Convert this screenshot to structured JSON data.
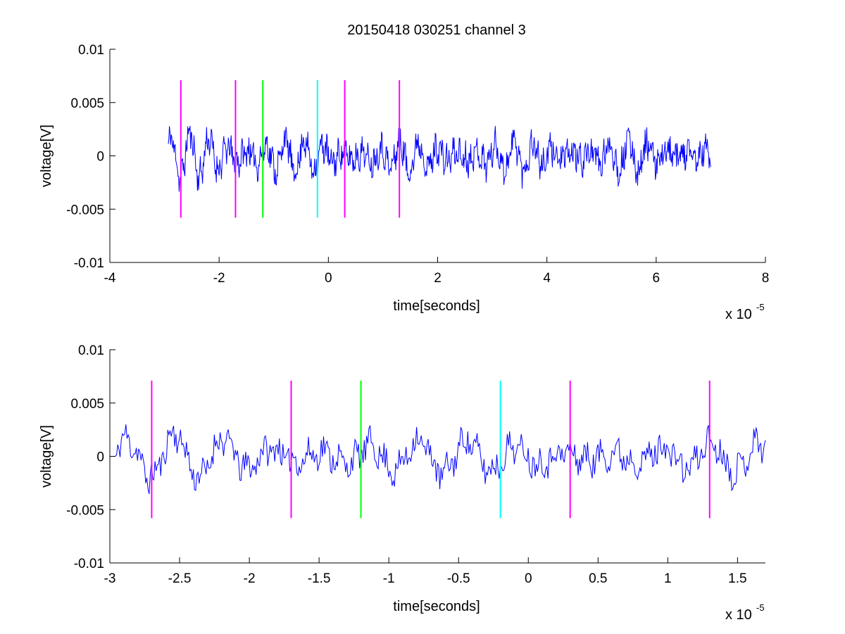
{
  "chart_data": {
    "title": "20150418 030251 channel 3",
    "panels": [
      {
        "id": "overview",
        "type": "line",
        "xlabel": "time[seconds]",
        "ylabel": "voltage[V]",
        "x_exponent_base": "x 10",
        "x_exponent_power": "-5",
        "xlim": [
          -4,
          8
        ],
        "ylim": [
          -0.01,
          0.01
        ],
        "x_ticks": [
          -4,
          -2,
          0,
          2,
          4,
          6,
          8
        ],
        "x_tick_labels": [
          "-4",
          "-2",
          "0",
          "2",
          "4",
          "6",
          "8"
        ],
        "y_ticks": [
          -0.01,
          -0.005,
          0,
          0.005,
          0.01
        ],
        "y_tick_labels": [
          "-0.01",
          "-0.005",
          "0",
          "0.005",
          "0.01"
        ],
        "signal": {
          "color": "#0000ff",
          "x_start": -2.93,
          "x_end": 7.0,
          "points": 950,
          "seed": 11
        },
        "markers": [
          {
            "x": -2.7,
            "color": "#ff00ff",
            "ymin": -0.0058,
            "ymax": 0.0071
          },
          {
            "x": -1.7,
            "color": "#ff00ff",
            "ymin": -0.0058,
            "ymax": 0.0071
          },
          {
            "x": -1.2,
            "color": "#00ff00",
            "ymin": -0.0058,
            "ymax": 0.0071
          },
          {
            "x": -0.2,
            "color": "#00ffff",
            "ymin": -0.0058,
            "ymax": 0.0071
          },
          {
            "x": 0.3,
            "color": "#ff00ff",
            "ymin": -0.0058,
            "ymax": 0.0071
          },
          {
            "x": 1.3,
            "color": "#ff00ff",
            "ymin": -0.0058,
            "ymax": 0.0071
          }
        ]
      },
      {
        "id": "zoom",
        "type": "line",
        "xlabel": "time[seconds]",
        "ylabel": "voltage[V]",
        "x_exponent_base": "x 10",
        "x_exponent_power": "-5",
        "xlim": [
          -3.0,
          1.7
        ],
        "ylim": [
          -0.01,
          0.01
        ],
        "x_ticks": [
          -3,
          -2.5,
          -2,
          -1.5,
          -1,
          -0.5,
          0,
          0.5,
          1,
          1.5
        ],
        "x_tick_labels": [
          "-3",
          "-2.5",
          "-2",
          "-1.5",
          "-1",
          "-0.5",
          "0",
          "0.5",
          "1",
          "1.5"
        ],
        "y_ticks": [
          -0.01,
          -0.005,
          0,
          0.005,
          0.01
        ],
        "y_tick_labels": [
          "-0.01",
          "-0.005",
          "0",
          "0.005",
          "0.01"
        ],
        "signal": {
          "color": "#0000ff",
          "x_start": -2.96,
          "x_end": 1.7,
          "points": 560,
          "seed": 11
        },
        "markers": [
          {
            "x": -2.7,
            "color": "#ff00ff",
            "ymin": -0.0058,
            "ymax": 0.0071
          },
          {
            "x": -1.7,
            "color": "#ff00ff",
            "ymin": -0.0058,
            "ymax": 0.0071
          },
          {
            "x": -1.2,
            "color": "#00ff00",
            "ymin": -0.0058,
            "ymax": 0.0071
          },
          {
            "x": -0.2,
            "color": "#00ffff",
            "ymin": -0.0058,
            "ymax": 0.0071
          },
          {
            "x": 0.3,
            "color": "#ff00ff",
            "ymin": -0.0058,
            "ymax": 0.0071
          },
          {
            "x": 1.3,
            "color": "#ff00ff",
            "ymin": -0.0058,
            "ymax": 0.0071
          }
        ]
      }
    ]
  }
}
